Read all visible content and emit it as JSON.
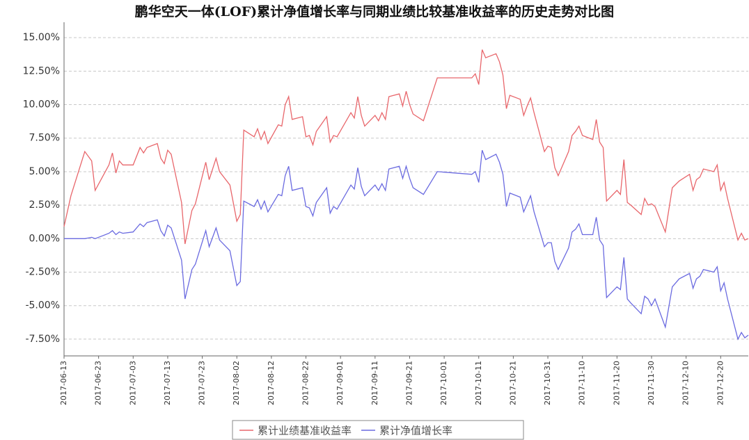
{
  "chart_data": {
    "type": "line",
    "title": "鹏华空天一体(LOF)累计净值增长率与同期业绩比较基准收益率的历史走势对比图",
    "x": [
      "2017-06-13",
      "2017-06-15",
      "2017-06-19",
      "2017-06-21",
      "2017-06-22",
      "2017-06-26",
      "2017-06-27",
      "2017-06-28",
      "2017-06-29",
      "2017-06-30",
      "2017-07-03",
      "2017-07-05",
      "2017-07-06",
      "2017-07-07",
      "2017-07-10",
      "2017-07-11",
      "2017-07-12",
      "2017-07-13",
      "2017-07-14",
      "2017-07-17",
      "2017-07-18",
      "2017-07-20",
      "2017-07-21",
      "2017-07-24",
      "2017-07-25",
      "2017-07-27",
      "2017-07-28",
      "2017-07-31",
      "2017-08-02",
      "2017-08-03",
      "2017-08-04",
      "2017-08-07",
      "2017-08-08",
      "2017-08-09",
      "2017-08-10",
      "2017-08-11",
      "2017-08-14",
      "2017-08-15",
      "2017-08-16",
      "2017-08-17",
      "2017-08-18",
      "2017-08-21",
      "2017-08-22",
      "2017-08-23",
      "2017-08-24",
      "2017-08-25",
      "2017-08-28",
      "2017-08-29",
      "2017-08-30",
      "2017-08-31",
      "2017-09-04",
      "2017-09-05",
      "2017-09-06",
      "2017-09-07",
      "2017-09-08",
      "2017-09-11",
      "2017-09-12",
      "2017-09-13",
      "2017-09-14",
      "2017-09-15",
      "2017-09-18",
      "2017-09-19",
      "2017-09-20",
      "2017-09-21",
      "2017-09-22",
      "2017-09-25",
      "2017-09-29",
      "2017-10-09",
      "2017-10-10",
      "2017-10-11",
      "2017-10-12",
      "2017-10-13",
      "2017-10-16",
      "2017-10-17",
      "2017-10-18",
      "2017-10-19",
      "2017-10-20",
      "2017-10-23",
      "2017-10-24",
      "2017-10-25",
      "2017-10-26",
      "2017-10-27",
      "2017-10-30",
      "2017-10-31",
      "2017-11-01",
      "2017-11-02",
      "2017-11-03",
      "2017-11-06",
      "2017-11-07",
      "2017-11-08",
      "2017-11-09",
      "2017-11-10",
      "2017-11-13",
      "2017-11-14",
      "2017-11-15",
      "2017-11-16",
      "2017-11-17",
      "2017-11-20",
      "2017-11-21",
      "2017-11-22",
      "2017-11-23",
      "2017-11-24",
      "2017-11-27",
      "2017-11-28",
      "2017-11-29",
      "2017-11-30",
      "2017-12-01",
      "2017-12-04",
      "2017-12-06",
      "2017-12-08",
      "2017-12-11",
      "2017-12-12",
      "2017-12-13",
      "2017-12-14",
      "2017-12-15",
      "2017-12-18",
      "2017-12-19",
      "2017-12-20",
      "2017-12-21",
      "2017-12-22",
      "2017-12-25",
      "2017-12-26",
      "2017-12-27",
      "2017-12-28"
    ],
    "series": [
      {
        "name": "累计业绩基准收益率",
        "color": "#e8666b",
        "values": [
          0.9,
          3.2,
          6.5,
          5.8,
          3.6,
          5.5,
          6.4,
          4.9,
          5.8,
          5.5,
          5.5,
          6.8,
          6.4,
          6.8,
          7.1,
          6.0,
          5.6,
          6.6,
          6.3,
          2.7,
          -0.4,
          2.1,
          2.6,
          5.7,
          4.4,
          6.0,
          5.0,
          4.0,
          1.3,
          1.8,
          8.1,
          7.6,
          8.2,
          7.4,
          8.0,
          7.1,
          8.5,
          8.4,
          10.0,
          10.6,
          8.9,
          9.1,
          7.6,
          7.7,
          7.0,
          8.0,
          9.1,
          7.2,
          7.7,
          7.6,
          9.4,
          9.0,
          10.6,
          9.2,
          8.4,
          9.2,
          8.8,
          9.4,
          8.9,
          10.6,
          10.8,
          9.9,
          11.0,
          10.0,
          9.3,
          8.8,
          12.0,
          12.0,
          12.3,
          11.5,
          14.1,
          13.5,
          13.8,
          13.2,
          12.2,
          9.7,
          10.7,
          10.4,
          9.2,
          9.9,
          10.5,
          9.4,
          6.5,
          6.9,
          6.8,
          5.3,
          4.7,
          6.5,
          7.7,
          8.0,
          8.4,
          7.7,
          7.4,
          8.9,
          7.2,
          6.8,
          2.8,
          3.6,
          3.3,
          5.9,
          2.7,
          2.5,
          1.8,
          3.0,
          2.5,
          2.6,
          2.4,
          0.5,
          3.8,
          4.3,
          4.8,
          3.6,
          4.4,
          4.6,
          5.2,
          5.0,
          5.5,
          3.6,
          4.2,
          3.0,
          -0.1,
          0.4,
          -0.1,
          0.0
        ]
      },
      {
        "name": "累计净值增长率",
        "color": "#6a6ae0",
        "values": [
          0.0,
          0.0,
          0.0,
          0.1,
          0.0,
          0.4,
          0.6,
          0.3,
          0.5,
          0.4,
          0.5,
          1.1,
          0.9,
          1.2,
          1.4,
          0.6,
          0.2,
          1.0,
          0.8,
          -1.6,
          -4.5,
          -2.3,
          -1.9,
          0.6,
          -0.6,
          0.8,
          -0.1,
          -0.9,
          -3.5,
          -3.2,
          2.8,
          2.4,
          2.9,
          2.2,
          2.8,
          2.0,
          3.3,
          3.2,
          4.7,
          5.4,
          3.6,
          3.8,
          2.4,
          2.3,
          1.7,
          2.7,
          3.8,
          1.9,
          2.4,
          2.2,
          4.0,
          3.7,
          5.3,
          3.9,
          3.2,
          4.0,
          3.6,
          4.1,
          3.6,
          5.2,
          5.4,
          4.5,
          5.4,
          4.5,
          3.8,
          3.3,
          5.0,
          4.8,
          5.0,
          4.2,
          6.6,
          5.9,
          6.3,
          5.7,
          4.8,
          2.4,
          3.4,
          3.1,
          2.0,
          2.6,
          3.2,
          2.0,
          -0.6,
          -0.3,
          -0.3,
          -1.7,
          -2.3,
          -0.7,
          0.5,
          0.7,
          1.1,
          0.3,
          0.3,
          1.6,
          -0.1,
          -0.5,
          -4.4,
          -3.6,
          -3.8,
          -1.4,
          -4.5,
          -4.8,
          -5.6,
          -4.3,
          -4.5,
          -5.0,
          -4.5,
          -6.6,
          -3.6,
          -3.0,
          -2.6,
          -3.7,
          -3.0,
          -2.8,
          -2.3,
          -2.5,
          -2.1,
          -3.9,
          -3.3,
          -4.5,
          -7.5,
          -7.0,
          -7.4,
          -7.2
        ]
      }
    ],
    "xlim": [
      "2017-06-13",
      "2017-12-28"
    ],
    "xticks": [
      "2017-06-13",
      "2017-06-23",
      "2017-07-03",
      "2017-07-13",
      "2017-07-23",
      "2017-08-02",
      "2017-08-12",
      "2017-08-22",
      "2017-09-01",
      "2017-09-11",
      "2017-09-21",
      "2017-10-01",
      "2017-10-11",
      "2017-10-21",
      "2017-10-31",
      "2017-11-10",
      "2017-11-20",
      "2017-11-30",
      "2017-12-10",
      "2017-12-20"
    ],
    "ylim": [
      -8.75,
      16.15
    ],
    "yticks": [
      {
        "value": -7.5,
        "label": "-7.50%"
      },
      {
        "value": -5,
        "label": "-5.00%"
      },
      {
        "value": -2.5,
        "label": "-2.50%"
      },
      {
        "value": 0,
        "label": "0.00%"
      },
      {
        "value": 2.5,
        "label": "2.50%"
      },
      {
        "value": 5,
        "label": "5.00%"
      },
      {
        "value": 7.5,
        "label": "7.50%"
      },
      {
        "value": 10,
        "label": "10.00%"
      },
      {
        "value": 12.5,
        "label": "12.50%"
      },
      {
        "value": 15,
        "label": "15.00%"
      }
    ],
    "grid": true
  }
}
